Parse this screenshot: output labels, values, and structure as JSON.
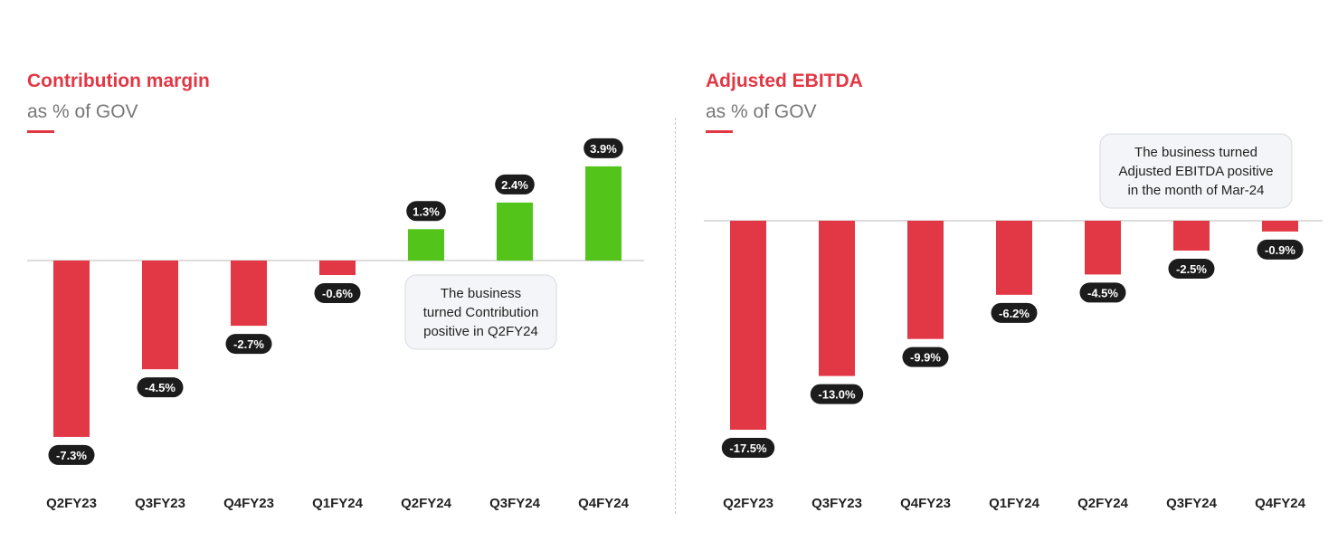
{
  "colors": {
    "negative": "#e23744",
    "positive": "#52c41a",
    "label_bg": "#1c1c1c",
    "axis": "#d0d0d0"
  },
  "chart_data": [
    {
      "type": "bar",
      "title": "Contribution margin",
      "subtitle": "as % of GOV",
      "categories": [
        "Q2FY23",
        "Q3FY23",
        "Q4FY23",
        "Q1FY24",
        "Q2FY24",
        "Q3FY24",
        "Q4FY24"
      ],
      "values": [
        -7.3,
        -4.5,
        -2.7,
        -0.6,
        1.3,
        2.4,
        3.9
      ],
      "data_labels": [
        "-7.3%",
        "-4.5%",
        "-2.7%",
        "-0.6%",
        "1.3%",
        "2.4%",
        "3.9%"
      ],
      "annotation": [
        "The business",
        "turned Contribution",
        "positive in Q2FY24"
      ],
      "xlabel": "",
      "ylabel": "",
      "grid": false
    },
    {
      "type": "bar",
      "title": "Adjusted EBITDA",
      "subtitle": "as % of GOV",
      "categories": [
        "Q2FY23",
        "Q3FY23",
        "Q4FY23",
        "Q1FY24",
        "Q2FY24",
        "Q3FY24",
        "Q4FY24"
      ],
      "values": [
        -17.5,
        -13.0,
        -9.9,
        -6.2,
        -4.5,
        -2.5,
        -0.9
      ],
      "data_labels": [
        "-17.5%",
        "-13.0%",
        "-9.9%",
        "-6.2%",
        "-4.5%",
        "-2.5%",
        "-0.9%"
      ],
      "annotation": [
        "The business turned",
        "Adjusted EBITDA positive",
        "in the month of Mar-24"
      ],
      "xlabel": "",
      "ylabel": "",
      "grid": false
    }
  ]
}
